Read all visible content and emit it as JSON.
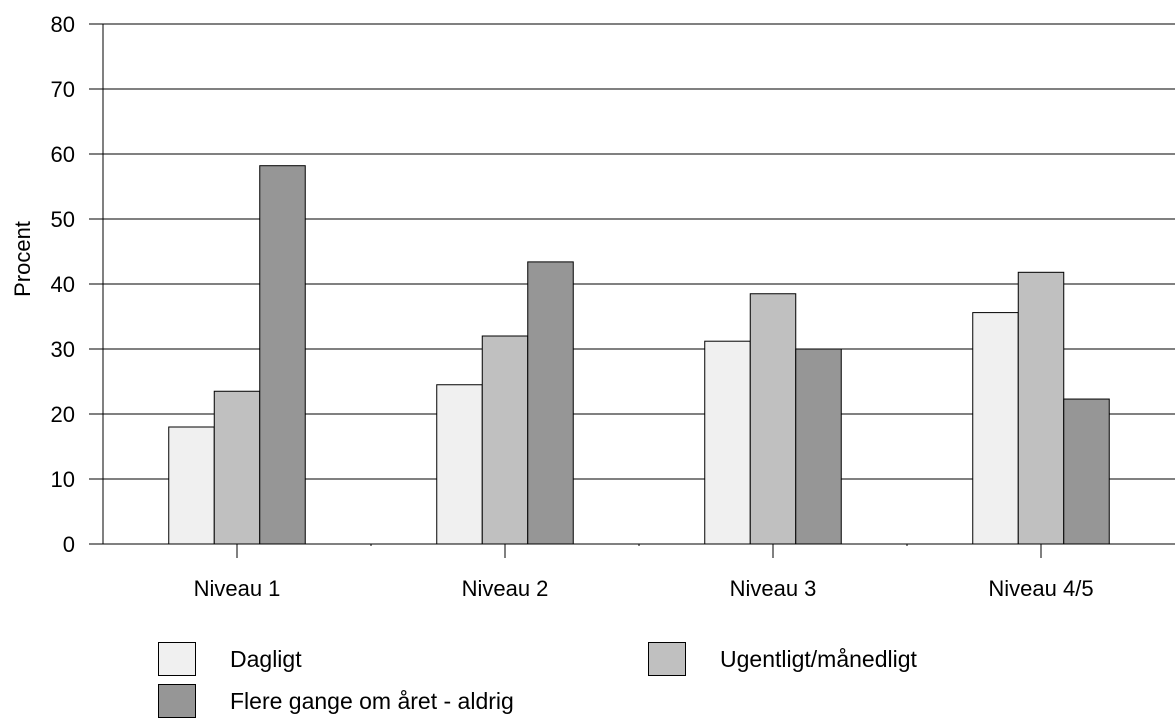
{
  "chart_data": {
    "type": "bar",
    "title": "",
    "ylabel": "Procent",
    "xlabel": "",
    "categories": [
      "Niveau 1",
      "Niveau 2",
      "Niveau 3",
      "Niveau 4/5"
    ],
    "series": [
      {
        "name": "Dagligt",
        "color": "#f0f0f0",
        "values": [
          18,
          24.5,
          31.2,
          35.6
        ]
      },
      {
        "name": "Ugentligt/månedligt",
        "color": "#c0c0c0",
        "values": [
          23.5,
          32,
          38.5,
          41.8
        ]
      },
      {
        "name": "Flere gange om året - aldrig",
        "color": "#969696",
        "values": [
          58.2,
          43.4,
          30,
          22.3
        ]
      }
    ],
    "ylim": [
      0,
      80
    ],
    "yticks": [
      0,
      10,
      20,
      30,
      40,
      50,
      60,
      70,
      80
    ],
    "grid": true,
    "legend_position": "bottom"
  }
}
